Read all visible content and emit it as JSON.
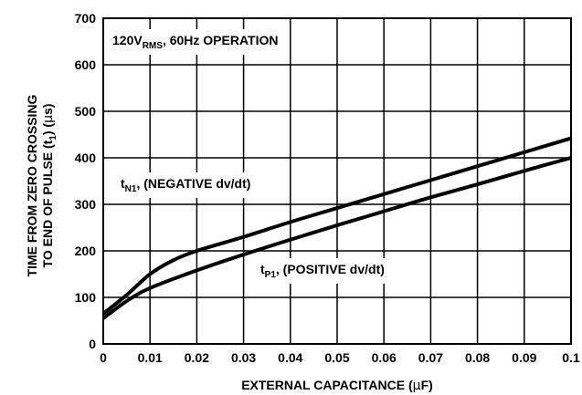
{
  "chart_data": {
    "type": "line",
    "xlabel": "EXTERNAL CAPACITANCE (",
    "xlabel_symbol": "µ",
    "xlabel_suffix": "F)",
    "ylabel_line1": "TIME FROM ZERO CROSSING",
    "ylabel_line2_prefix": "TO END OF PULSE (t",
    "ylabel_line2_sub": "1",
    "ylabel_line2_suffix": ") (",
    "ylabel_line2_symbol": "µ",
    "ylabel_line2_end": "s)",
    "xlim": [
      0,
      0.1
    ],
    "ylim": [
      0,
      700
    ],
    "x_ticks": [
      "0",
      "0.01",
      "0.02",
      "0.03",
      "0.04",
      "0.05",
      "0.06",
      "0.07",
      "0.08",
      "0.09",
      "0.1"
    ],
    "y_ticks": [
      "0",
      "100",
      "200",
      "300",
      "400",
      "500",
      "600",
      "700"
    ],
    "grid": true,
    "condition": {
      "prefix": "120V",
      "sub": "RMS",
      "suffix": ", 60Hz OPERATION"
    },
    "series": [
      {
        "name_main": "t",
        "name_sub": "N1",
        "name_suffix": ", (NEGATIVE dv/dt)",
        "x": [
          0,
          0.005,
          0.01,
          0.015,
          0.02,
          0.03,
          0.04,
          0.05,
          0.06,
          0.07,
          0.08,
          0.09,
          0.1
        ],
        "y": [
          65,
          105,
          150,
          180,
          200,
          230,
          262,
          292,
          322,
          352,
          382,
          412,
          442
        ]
      },
      {
        "name_main": "t",
        "name_sub": "P1",
        "name_suffix": ", (POSITIVE dv/dt)",
        "x": [
          0,
          0.005,
          0.01,
          0.02,
          0.03,
          0.04,
          0.05,
          0.06,
          0.07,
          0.08,
          0.09,
          0.1
        ],
        "y": [
          55,
          92,
          120,
          158,
          192,
          224,
          255,
          285,
          315,
          343,
          372,
          400
        ]
      }
    ]
  }
}
